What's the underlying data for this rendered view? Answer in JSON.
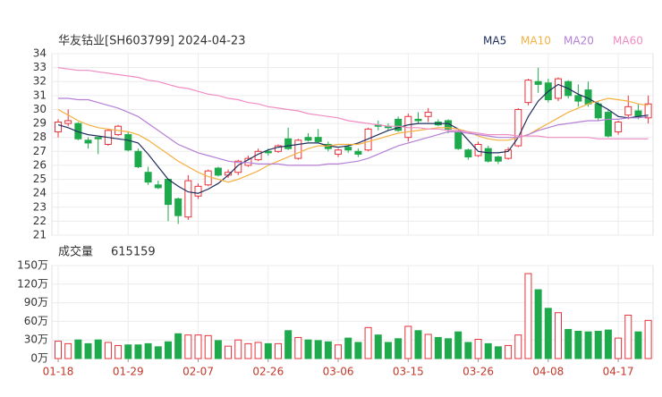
{
  "chart_data": {
    "type": "candlestick",
    "title": "华友钴业[SH603799] 2024-04-23",
    "categories": [
      "01-18",
      null,
      null,
      null,
      null,
      null,
      null,
      "01-29",
      null,
      null,
      null,
      null,
      null,
      null,
      "02-07",
      null,
      null,
      null,
      null,
      null,
      null,
      "02-26",
      null,
      null,
      null,
      null,
      null,
      null,
      "03-06",
      null,
      null,
      null,
      null,
      null,
      null,
      "03-15",
      null,
      null,
      null,
      null,
      null,
      null,
      "03-26",
      null,
      null,
      null,
      null,
      null,
      null,
      "04-08",
      null,
      null,
      null,
      null,
      null,
      null,
      "04-17",
      null,
      null,
      null
    ],
    "open": [
      28.4,
      29.0,
      29.0,
      27.8,
      28.0,
      27.5,
      28.2,
      28.2,
      27.0,
      25.5,
      24.6,
      25.0,
      23.6,
      22.3,
      23.8,
      24.6,
      25.8,
      25.3,
      25.5,
      26.0,
      26.4,
      27.0,
      27.0,
      27.9,
      26.5,
      28.0,
      28.0,
      27.5,
      26.8,
      27.3,
      27.0,
      27.1,
      28.9,
      28.8,
      29.3,
      28.0,
      29.3,
      29.5,
      29.1,
      29.2,
      28.4,
      27.1,
      26.7,
      27.2,
      26.6,
      26.5,
      27.4,
      30.5,
      32.0,
      31.9,
      30.8,
      32.0,
      31.0,
      31.4,
      30.4,
      29.8,
      28.4,
      29.6,
      29.9,
      29.4
    ],
    "high": [
      29.3,
      30.0,
      29.1,
      28.0,
      28.0,
      28.6,
      28.9,
      28.4,
      27.2,
      25.9,
      24.9,
      25.0,
      23.7,
      25.3,
      24.7,
      25.7,
      25.9,
      25.7,
      26.4,
      26.7,
      27.2,
      27.2,
      27.5,
      28.7,
      27.9,
      28.3,
      28.6,
      27.7,
      27.2,
      27.5,
      27.2,
      28.7,
      29.2,
      29.0,
      29.5,
      29.7,
      29.8,
      30.1,
      29.3,
      29.3,
      28.5,
      27.2,
      27.7,
      27.4,
      26.7,
      27.3,
      30.1,
      32.2,
      33.0,
      32.2,
      32.3,
      32.1,
      31.8,
      32.0,
      30.6,
      30.0,
      29.2,
      31.0,
      30.4,
      31.0
    ],
    "low": [
      28.0,
      28.8,
      27.8,
      27.2,
      26.8,
      27.4,
      28.1,
      27.0,
      25.8,
      24.6,
      24.3,
      22.0,
      21.8,
      22.1,
      23.6,
      24.5,
      25.2,
      25.1,
      25.3,
      25.9,
      26.3,
      26.7,
      26.9,
      27.1,
      26.4,
      27.7,
      27.6,
      27.0,
      26.6,
      26.9,
      26.6,
      27.0,
      28.5,
      28.5,
      28.4,
      27.7,
      29.0,
      29.1,
      28.8,
      28.3,
      27.1,
      26.4,
      26.6,
      26.2,
      26.1,
      26.4,
      27.3,
      30.3,
      31.2,
      30.5,
      30.6,
      30.8,
      30.2,
      30.2,
      29.2,
      28.0,
      28.2,
      29.3,
      29.3,
      29.0
    ],
    "close": [
      29.1,
      29.2,
      27.9,
      27.6,
      27.9,
      28.5,
      28.8,
      27.1,
      25.9,
      24.8,
      24.4,
      23.2,
      22.4,
      24.9,
      24.5,
      25.6,
      25.3,
      25.5,
      26.3,
      26.5,
      27.0,
      26.9,
      27.4,
      27.2,
      27.8,
      27.8,
      27.7,
      27.2,
      27.1,
      27.1,
      26.8,
      28.6,
      28.8,
      28.7,
      28.5,
      29.5,
      29.2,
      29.8,
      28.9,
      28.6,
      27.2,
      26.6,
      27.5,
      26.3,
      26.3,
      27.1,
      30.0,
      32.1,
      31.8,
      30.7,
      32.2,
      31.0,
      30.6,
      30.4,
      29.4,
      28.1,
      29.1,
      30.2,
      29.5,
      30.4
    ],
    "ylim": [
      21,
      34
    ],
    "yticks": [
      21,
      22,
      23,
      24,
      25,
      26,
      27,
      28,
      29,
      30,
      31,
      32,
      33,
      34
    ],
    "up_color": "#e8313a",
    "down_color": "#1eaa4c",
    "grid": true,
    "series": [
      {
        "name": "MA5",
        "color": "#1f2d5c",
        "values": [
          28.9,
          28.7,
          28.4,
          28.2,
          28.1,
          28.0,
          27.9,
          27.8,
          27.6,
          26.8,
          25.9,
          25.0,
          24.5,
          24.1,
          24.0,
          24.3,
          24.7,
          25.3,
          26.0,
          26.4,
          26.8,
          27.1,
          27.3,
          27.4,
          27.5,
          27.6,
          27.6,
          27.4,
          27.3,
          27.4,
          27.6,
          27.9,
          28.2,
          28.5,
          28.7,
          28.9,
          29.0,
          29.0,
          29.0,
          29.0,
          28.6,
          27.8,
          27.0,
          26.9,
          26.9,
          27.0,
          28.0,
          29.5,
          30.6,
          31.3,
          31.8,
          31.5,
          31.1,
          30.8,
          30.4,
          30.0,
          29.5,
          29.4,
          29.5,
          29.6
        ]
      },
      {
        "name": "MA10",
        "color": "#f5b041",
        "values": [
          30.0,
          29.6,
          29.2,
          28.9,
          28.7,
          28.6,
          28.5,
          28.4,
          28.2,
          27.8,
          27.3,
          26.8,
          26.3,
          25.9,
          25.5,
          25.2,
          25.0,
          24.8,
          25.0,
          25.3,
          25.6,
          26.0,
          26.3,
          26.6,
          26.9,
          27.2,
          27.4,
          27.4,
          27.5,
          27.5,
          27.5,
          27.7,
          27.9,
          28.1,
          28.3,
          28.4,
          28.5,
          28.6,
          28.7,
          28.7,
          28.6,
          28.4,
          28.1,
          27.9,
          27.8,
          27.8,
          28.0,
          28.2,
          28.6,
          29.0,
          29.4,
          29.8,
          30.1,
          30.4,
          30.6,
          30.8,
          30.7,
          30.6,
          30.4,
          30.3
        ]
      },
      {
        "name": "MA20",
        "color": "#b57fd6",
        "values": [
          30.8,
          30.8,
          30.7,
          30.7,
          30.5,
          30.3,
          30.1,
          29.8,
          29.5,
          29.0,
          28.5,
          28.0,
          27.5,
          27.2,
          26.9,
          26.7,
          26.5,
          26.3,
          26.2,
          26.2,
          26.1,
          26.1,
          26.1,
          26.0,
          26.0,
          26.0,
          26.0,
          26.1,
          26.1,
          26.2,
          26.3,
          26.5,
          26.8,
          27.1,
          27.4,
          27.6,
          27.8,
          28.0,
          28.2,
          28.4,
          28.4,
          28.3,
          28.2,
          28.1,
          28.0,
          28.0,
          28.0,
          28.2,
          28.5,
          28.7,
          28.9,
          29.0,
          29.1,
          29.2,
          29.2,
          29.3,
          29.3,
          29.4,
          29.4,
          29.5
        ]
      },
      {
        "name": "MA60",
        "color": "#f08cc4",
        "values": [
          33.0,
          32.9,
          32.8,
          32.8,
          32.7,
          32.6,
          32.5,
          32.4,
          32.3,
          32.1,
          32.0,
          31.8,
          31.6,
          31.5,
          31.3,
          31.1,
          31.0,
          30.8,
          30.7,
          30.5,
          30.4,
          30.2,
          30.1,
          30.0,
          29.9,
          29.7,
          29.6,
          29.5,
          29.4,
          29.2,
          29.1,
          29.0,
          28.9,
          28.8,
          28.8,
          28.7,
          28.7,
          28.6,
          28.6,
          28.5,
          28.5,
          28.4,
          28.3,
          28.2,
          28.2,
          28.2,
          28.1,
          28.1,
          28.1,
          28.0,
          28.0,
          28.0,
          28.0,
          28.0,
          27.9,
          27.9,
          27.9,
          27.9,
          27.9,
          27.9
        ]
      }
    ],
    "volume": {
      "title": "成交量",
      "last_label": "615159",
      "values": [
        28,
        24,
        30,
        24,
        30,
        26,
        21,
        22,
        22,
        24,
        19,
        27,
        40,
        38,
        38,
        37,
        29,
        20,
        30,
        24,
        26,
        24,
        24,
        45,
        34,
        30,
        29,
        27,
        22,
        33,
        26,
        50,
        38,
        26,
        32,
        52,
        45,
        39,
        34,
        32,
        43,
        26,
        31,
        24,
        19,
        21,
        38,
        137,
        111,
        81,
        74,
        47,
        44,
        43,
        44,
        46,
        33,
        70,
        43,
        61.5159
      ],
      "ylim": [
        0,
        150
      ],
      "yticks": [
        {
          "value": 0,
          "label": "0万"
        },
        {
          "value": 30,
          "label": "30万"
        },
        {
          "value": 60,
          "label": "60万"
        },
        {
          "value": 90,
          "label": "90万"
        },
        {
          "value": 120,
          "label": "120万"
        },
        {
          "value": 150,
          "label": "150万"
        }
      ]
    }
  }
}
